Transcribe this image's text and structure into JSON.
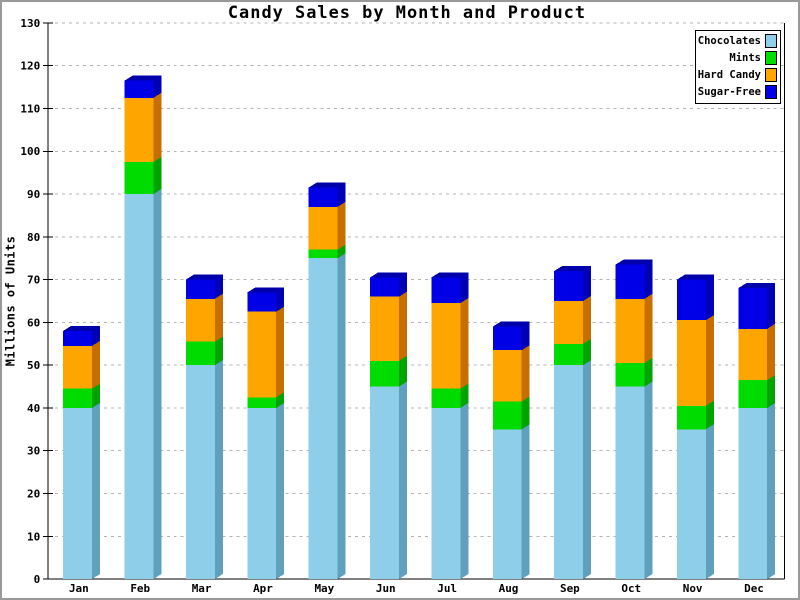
{
  "chart_data": {
    "type": "bar",
    "stacked": true,
    "pseudo_3d": true,
    "title": "Candy Sales by Month and Product",
    "xlabel": "",
    "ylabel": "Millions of Units",
    "ylim": [
      0,
      130
    ],
    "ytick_step": 10,
    "yticks": [
      0,
      10,
      20,
      30,
      40,
      50,
      60,
      70,
      80,
      90,
      100,
      110,
      120,
      130
    ],
    "grid": "horizontal-dashed",
    "legend_position": "top-right",
    "categories": [
      "Jan",
      "Feb",
      "Mar",
      "Apr",
      "May",
      "Jun",
      "Jul",
      "Aug",
      "Sep",
      "Oct",
      "Nov",
      "Dec"
    ],
    "series": [
      {
        "name": "Chocolates",
        "color": "#8FCEE8",
        "side_color": "#5FA0BC",
        "values": [
          40,
          90,
          50,
          40,
          75,
          45,
          40,
          35,
          50,
          45,
          35,
          40
        ]
      },
      {
        "name": "Mints",
        "color": "#00DC00",
        "side_color": "#00A300",
        "values": [
          4.5,
          7.5,
          5.5,
          2.5,
          2,
          6,
          4.5,
          6.5,
          5,
          5.5,
          5.5,
          6.5
        ]
      },
      {
        "name": "Hard Candy",
        "color": "#FFA500",
        "side_color": "#C66F00",
        "values": [
          10,
          15,
          10,
          20,
          10,
          15,
          20,
          12,
          10,
          15,
          20,
          12
        ]
      },
      {
        "name": "Sugar-Free",
        "color": "#0000E6",
        "side_color": "#0000B4",
        "top_color": "#0000AA",
        "values": [
          3.5,
          4,
          4.5,
          4.5,
          4.5,
          4.5,
          6,
          5.5,
          7,
          8,
          9.5,
          9.5
        ]
      }
    ],
    "totals": [
      58,
      116.5,
      70,
      67,
      91.5,
      70.5,
      70.5,
      59,
      72,
      73.5,
      70,
      68
    ],
    "colors": {
      "axis": "#000000",
      "gridline": "#B3B3B3",
      "plot_background": "#FFFFFF",
      "image_border": "#999999"
    }
  }
}
